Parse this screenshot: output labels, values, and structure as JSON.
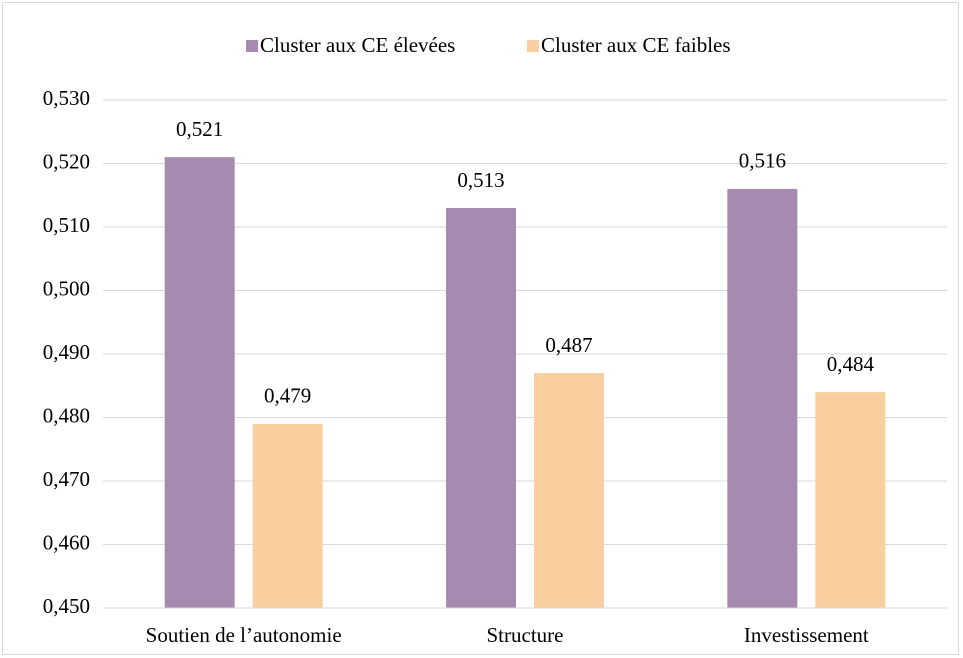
{
  "chart_data": {
    "type": "bar",
    "categories": [
      "Soutien de l’autonomie",
      "Structure",
      "Investissement"
    ],
    "series": [
      {
        "name": "Cluster aux CE élevées",
        "color": "#a68bb0",
        "values": [
          0.521,
          0.513,
          0.516
        ],
        "value_labels": [
          "0,521",
          "0,513",
          "0,516"
        ]
      },
      {
        "name": "Cluster aux CE faibles",
        "color": "#f9cfa0",
        "values": [
          0.479,
          0.487,
          0.484
        ],
        "value_labels": [
          "0,479",
          "0,487",
          "0,484"
        ]
      }
    ],
    "ylim": [
      0.45,
      0.53
    ],
    "yticks": [
      {
        "value": 0.45,
        "label": "0,450"
      },
      {
        "value": 0.46,
        "label": "0,460"
      },
      {
        "value": 0.47,
        "label": "0,470"
      },
      {
        "value": 0.48,
        "label": "0,480"
      },
      {
        "value": 0.49,
        "label": "0,490"
      },
      {
        "value": 0.5,
        "label": "0,500"
      },
      {
        "value": 0.51,
        "label": "0,510"
      },
      {
        "value": 0.52,
        "label": "0,520"
      },
      {
        "value": 0.53,
        "label": "0,530"
      }
    ],
    "grid": true,
    "legend": "top"
  }
}
